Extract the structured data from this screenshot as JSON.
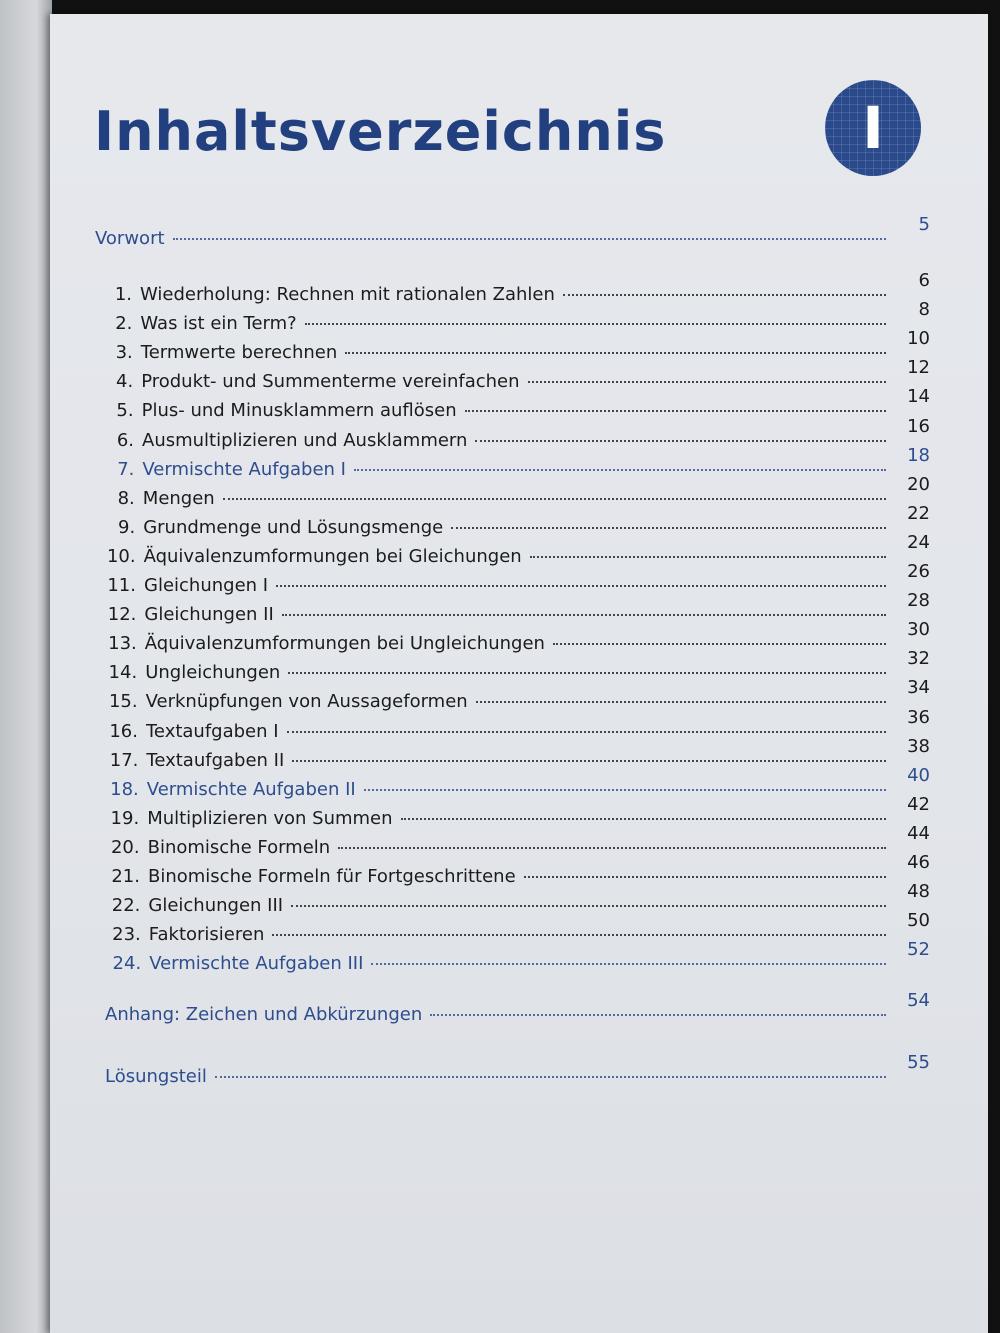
{
  "header": {
    "title": "Inhaltsverzeichnis",
    "badge": "I"
  },
  "preface": {
    "title": "Vorwort",
    "page": "5",
    "color": "#2d4d8e"
  },
  "entries": [
    {
      "number": "1.",
      "title": "Wiederholung: Rechnen mit rationalen Zahlen",
      "page": "6",
      "color": "#1c1c1c"
    },
    {
      "number": "2.",
      "title": "Was ist ein Term?",
      "page": "8",
      "color": "#1c1c1c"
    },
    {
      "number": "3.",
      "title": "Termwerte berechnen",
      "page": "10",
      "color": "#1c1c1c"
    },
    {
      "number": "4.",
      "title": "Produkt- und Summenterme vereinfachen",
      "page": "12",
      "color": "#1c1c1c"
    },
    {
      "number": "5.",
      "title": "Plus- und Minusklammern auflösen",
      "page": "14",
      "color": "#1c1c1c"
    },
    {
      "number": "6.",
      "title": "Ausmultiplizieren und Ausklammern",
      "page": "16",
      "color": "#1c1c1c"
    },
    {
      "number": "7.",
      "title": "Vermischte Aufgaben I",
      "page": "18",
      "color": "#2d4d8e"
    },
    {
      "number": "8.",
      "title": "Mengen",
      "page": "20",
      "color": "#1c1c1c"
    },
    {
      "number": "9.",
      "title": "Grundmenge und Lösungsmenge",
      "page": "22",
      "color": "#1c1c1c"
    },
    {
      "number": "10.",
      "title": "Äquivalenzumformungen bei Gleichungen",
      "page": "24",
      "color": "#1c1c1c"
    },
    {
      "number": "11.",
      "title": "Gleichungen I",
      "page": "26",
      "color": "#1c1c1c"
    },
    {
      "number": "12.",
      "title": "Gleichungen II",
      "page": "28",
      "color": "#1c1c1c"
    },
    {
      "number": "13.",
      "title": "Äquivalenzumformungen bei Ungleichungen",
      "page": "30",
      "color": "#1c1c1c"
    },
    {
      "number": "14.",
      "title": "Ungleichungen",
      "page": "32",
      "color": "#1c1c1c"
    },
    {
      "number": "15.",
      "title": "Verknüpfungen von Aussageformen",
      "page": "34",
      "color": "#1c1c1c"
    },
    {
      "number": "16.",
      "title": "Textaufgaben I",
      "page": "36",
      "color": "#1c1c1c"
    },
    {
      "number": "17.",
      "title": "Textaufgaben II",
      "page": "38",
      "color": "#1c1c1c"
    },
    {
      "number": "18.",
      "title": "Vermischte Aufgaben II",
      "page": "40",
      "color": "#2d4d8e"
    },
    {
      "number": "19.",
      "title": "Multiplizieren von Summen",
      "page": "42",
      "color": "#1c1c1c"
    },
    {
      "number": "20.",
      "title": "Binomische Formeln",
      "page": "44",
      "color": "#1c1c1c"
    },
    {
      "number": "21.",
      "title": "Binomische Formeln für Fortgeschrittene",
      "page": "46",
      "color": "#1c1c1c"
    },
    {
      "number": "22.",
      "title": "Gleichungen III",
      "page": "48",
      "color": "#1c1c1c"
    },
    {
      "number": "23.",
      "title": "Faktorisieren",
      "page": "50",
      "color": "#1c1c1c"
    },
    {
      "number": "24.",
      "title": "Vermischte Aufgaben III",
      "page": "52",
      "color": "#2d4d8e"
    }
  ],
  "appendix": [
    {
      "title": "Anhang: Zeichen und Abkürzungen",
      "page": "54",
      "color": "#2d4d8e"
    },
    {
      "title": "Lösungsteil",
      "page": "55",
      "color": "#2d4d8e"
    }
  ]
}
